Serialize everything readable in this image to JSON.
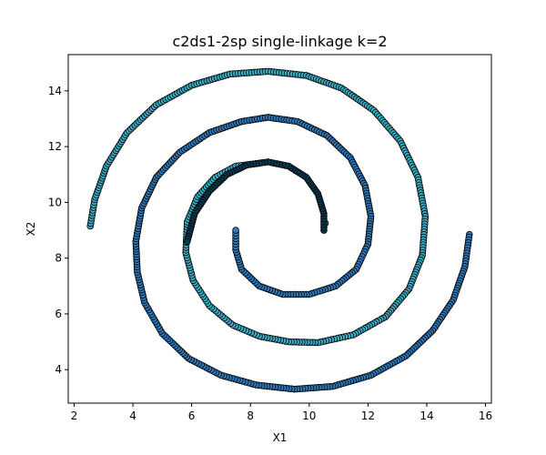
{
  "chart_data": {
    "type": "scatter",
    "title": "c2ds1-2sp single-linkage k=2",
    "xlabel": "X1",
    "ylabel": "X2",
    "xlim": [
      1.8,
      16.2
    ],
    "ylim": [
      2.8,
      15.3
    ],
    "xticks": [
      2,
      4,
      6,
      8,
      10,
      12,
      14,
      16
    ],
    "yticks": [
      4,
      6,
      8,
      10,
      12,
      14
    ],
    "grid": false,
    "legend": "none",
    "colors": {
      "cluster_a": "#3ab0c8",
      "cluster_b": "#2f7bbf",
      "cluster_c": "#0b3a50",
      "edge": "#000000"
    },
    "series": [
      {
        "color_key": "cluster_a",
        "description_points": [
          [
            2.55,
            9.15
          ],
          [
            2.7,
            10.1
          ],
          [
            3.1,
            11.3
          ],
          [
            3.8,
            12.5
          ],
          [
            4.8,
            13.5
          ],
          [
            6.0,
            14.2
          ],
          [
            7.3,
            14.6
          ],
          [
            8.6,
            14.7
          ],
          [
            9.9,
            14.55
          ],
          [
            11.1,
            14.1
          ],
          [
            12.2,
            13.3
          ],
          [
            13.1,
            12.2
          ],
          [
            13.7,
            10.9
          ],
          [
            13.95,
            9.5
          ],
          [
            13.85,
            8.1
          ],
          [
            13.4,
            6.9
          ],
          [
            12.6,
            5.9
          ],
          [
            11.5,
            5.25
          ],
          [
            10.3,
            4.97
          ],
          [
            9.3,
            5.0
          ],
          [
            8.3,
            5.2
          ],
          [
            7.4,
            5.6
          ],
          [
            6.6,
            6.3
          ],
          [
            6.05,
            7.2
          ],
          [
            5.8,
            8.2
          ],
          [
            5.85,
            9.3
          ],
          [
            6.2,
            10.2
          ],
          [
            6.8,
            10.9
          ],
          [
            7.5,
            11.3
          ],
          [
            8.3,
            11.4
          ],
          [
            10.55,
            9.25
          ]
        ]
      },
      {
        "color_key": "cluster_b",
        "description_points": [
          [
            15.45,
            8.85
          ],
          [
            15.3,
            7.7
          ],
          [
            14.9,
            6.5
          ],
          [
            14.2,
            5.4
          ],
          [
            13.3,
            4.5
          ],
          [
            12.1,
            3.8
          ],
          [
            10.8,
            3.4
          ],
          [
            9.5,
            3.3
          ],
          [
            8.2,
            3.45
          ],
          [
            7.0,
            3.8
          ],
          [
            5.9,
            4.4
          ],
          [
            5.0,
            5.3
          ],
          [
            4.4,
            6.4
          ],
          [
            4.15,
            7.5
          ],
          [
            4.1,
            8.6
          ],
          [
            4.3,
            9.8
          ],
          [
            4.8,
            10.9
          ],
          [
            5.6,
            11.8
          ],
          [
            6.6,
            12.5
          ],
          [
            7.7,
            12.9
          ],
          [
            8.6,
            13.05
          ],
          [
            9.6,
            12.9
          ],
          [
            10.6,
            12.4
          ],
          [
            11.4,
            11.6
          ],
          [
            11.9,
            10.6
          ],
          [
            12.1,
            9.5
          ],
          [
            12.0,
            8.5
          ],
          [
            11.6,
            7.6
          ],
          [
            10.9,
            7.0
          ],
          [
            10.0,
            6.7
          ],
          [
            9.1,
            6.7
          ],
          [
            8.3,
            7.0
          ],
          [
            7.7,
            7.6
          ],
          [
            7.5,
            8.3
          ],
          [
            7.5,
            9.0
          ]
        ]
      },
      {
        "color_key": "cluster_c",
        "description_points": [
          [
            10.5,
            9.0
          ],
          [
            10.5,
            9.6
          ],
          [
            10.3,
            10.3
          ],
          [
            9.9,
            10.9
          ],
          [
            9.3,
            11.3
          ],
          [
            8.6,
            11.45
          ],
          [
            7.9,
            11.35
          ],
          [
            7.2,
            11.0
          ],
          [
            6.6,
            10.4
          ],
          [
            6.1,
            9.6
          ],
          [
            5.85,
            8.6
          ]
        ]
      }
    ]
  }
}
